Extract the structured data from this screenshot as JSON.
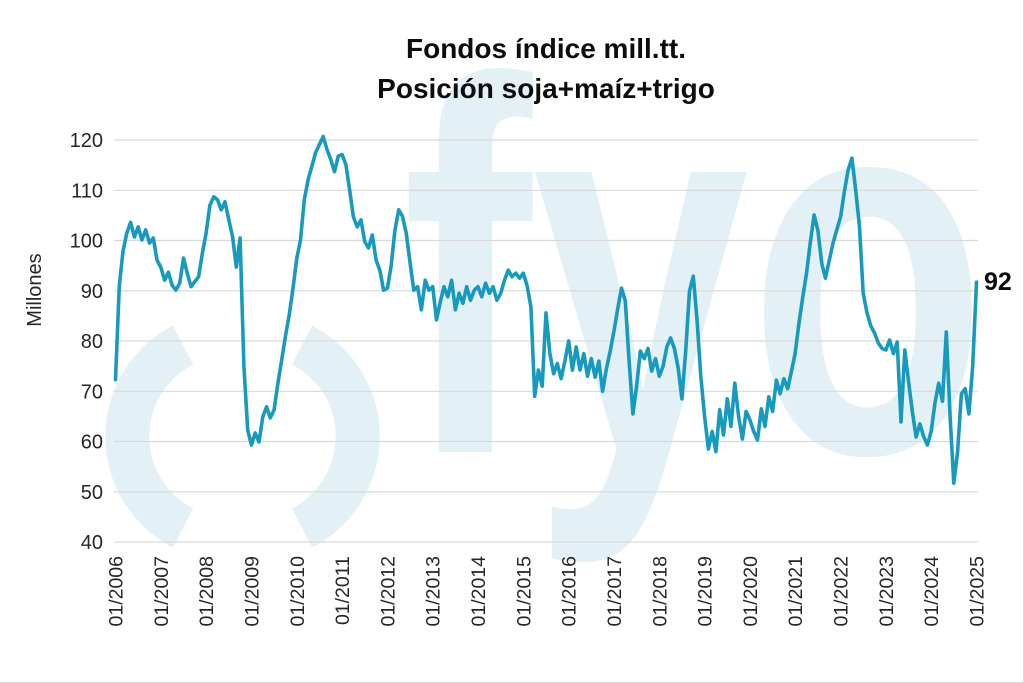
{
  "chart_data": {
    "type": "line",
    "title_line1": "Fondos índice mill.tt.",
    "title_line2": "Posición soja+maíz+trigo",
    "ylabel": "Millones",
    "end_label": "92",
    "ylim": [
      40,
      120
    ],
    "y_ticks": [
      40,
      50,
      60,
      70,
      80,
      90,
      100,
      110,
      120
    ],
    "x_tick_labels": [
      "01/2006",
      "01/2007",
      "01/2008",
      "01/2009",
      "01/2010",
      "01/2011",
      "01/2012",
      "01/2013",
      "01/2014",
      "01/2015",
      "01/2016",
      "01/2017",
      "01/2018",
      "01/2019",
      "01/2020",
      "01/2021",
      "01/2022",
      "01/2023",
      "01/2024",
      "01/2025"
    ],
    "x_start": "01/2006",
    "x_end": "01/2025",
    "x_interval": "monthly",
    "grid": "horizontal",
    "legend_position": "none",
    "line_color": "#189ABE",
    "grid_color": "#D9D9D9",
    "tick_label_color": "#262626",
    "watermark": {
      "text": "fyo",
      "symbol": "()",
      "color": "#E3F0F6"
    },
    "series": {
      "values": [
        72.3,
        91.0,
        98.0,
        101.5,
        103.6,
        100.7,
        102.7,
        100.1,
        102.1,
        99.5,
        100.5,
        96.1,
        94.7,
        92.1,
        93.7,
        91.1,
        90.1,
        91.5,
        96.5,
        93.5,
        90.8,
        91.8,
        92.8,
        97.5,
        101.5,
        107.0,
        108.7,
        108.1,
        106.1,
        107.7,
        104.1,
        100.7,
        94.7,
        100.5,
        75.0,
        62.3,
        59.3,
        61.7,
        59.9,
        64.9,
        66.9,
        64.7,
        66.3,
        71.6,
        76.2,
        80.9,
        85.2,
        90.5,
        96.5,
        100.1,
        108.1,
        112.1,
        114.8,
        117.5,
        119.1,
        120.7,
        118.1,
        116.1,
        113.7,
        116.8,
        117.1,
        115.1,
        110.1,
        104.7,
        102.7,
        104.1,
        99.8,
        98.5,
        101.1,
        96.1,
        94.1,
        90.1,
        90.5,
        95.0,
        102.0,
        106.1,
        104.8,
        101.4,
        95.5,
        90.1,
        90.8,
        86.2,
        92.1,
        90.1,
        90.8,
        84.2,
        87.8,
        90.8,
        88.8,
        92.1,
        86.2,
        89.5,
        87.5,
        90.8,
        88.1,
        90.1,
        90.8,
        88.8,
        91.5,
        89.5,
        90.8,
        88.1,
        89.5,
        92.1,
        94.1,
        92.8,
        93.5,
        92.5,
        93.5,
        91.0,
        86.8,
        69.0,
        74.2,
        71.0,
        85.6,
        77.6,
        73.5,
        75.5,
        72.5,
        76.0,
        80.0,
        74.2,
        78.8,
        74.2,
        77.5,
        73.0,
        76.5,
        72.8,
        76.0,
        70.0,
        74.5,
        78.0,
        82.0,
        86.5,
        90.5,
        88.0,
        76.0,
        65.5,
        71.0,
        78.0,
        76.5,
        78.5,
        74.0,
        76.5,
        73.0,
        75.0,
        78.8,
        80.6,
        78.5,
        74.6,
        68.5,
        78.0,
        90.0,
        92.9,
        84.0,
        73.0,
        65.0,
        58.5,
        62.0,
        58.0,
        66.3,
        61.3,
        68.5,
        63.0,
        71.6,
        65.0,
        60.5,
        66.0,
        64.3,
        62.0,
        60.3,
        66.5,
        63.0,
        68.9,
        66.0,
        72.2,
        69.5,
        72.5,
        70.5,
        74.0,
        77.6,
        83.6,
        88.8,
        93.6,
        99.6,
        105.1,
        102.0,
        95.5,
        92.5,
        96.0,
        99.5,
        102.1,
        104.7,
        109.7,
        114.0,
        116.4,
        110.0,
        103.0,
        89.5,
        85.6,
        83.0,
        81.6,
        79.6,
        78.5,
        78.2,
        80.2,
        77.5,
        79.8,
        63.9,
        78.2,
        72.0,
        66.0,
        60.9,
        63.5,
        61.0,
        59.3,
        62.0,
        67.7,
        71.6,
        68.0,
        81.8,
        65.0,
        51.7,
        58.0,
        69.5,
        70.5,
        65.5,
        75.0,
        91.7
      ]
    }
  }
}
